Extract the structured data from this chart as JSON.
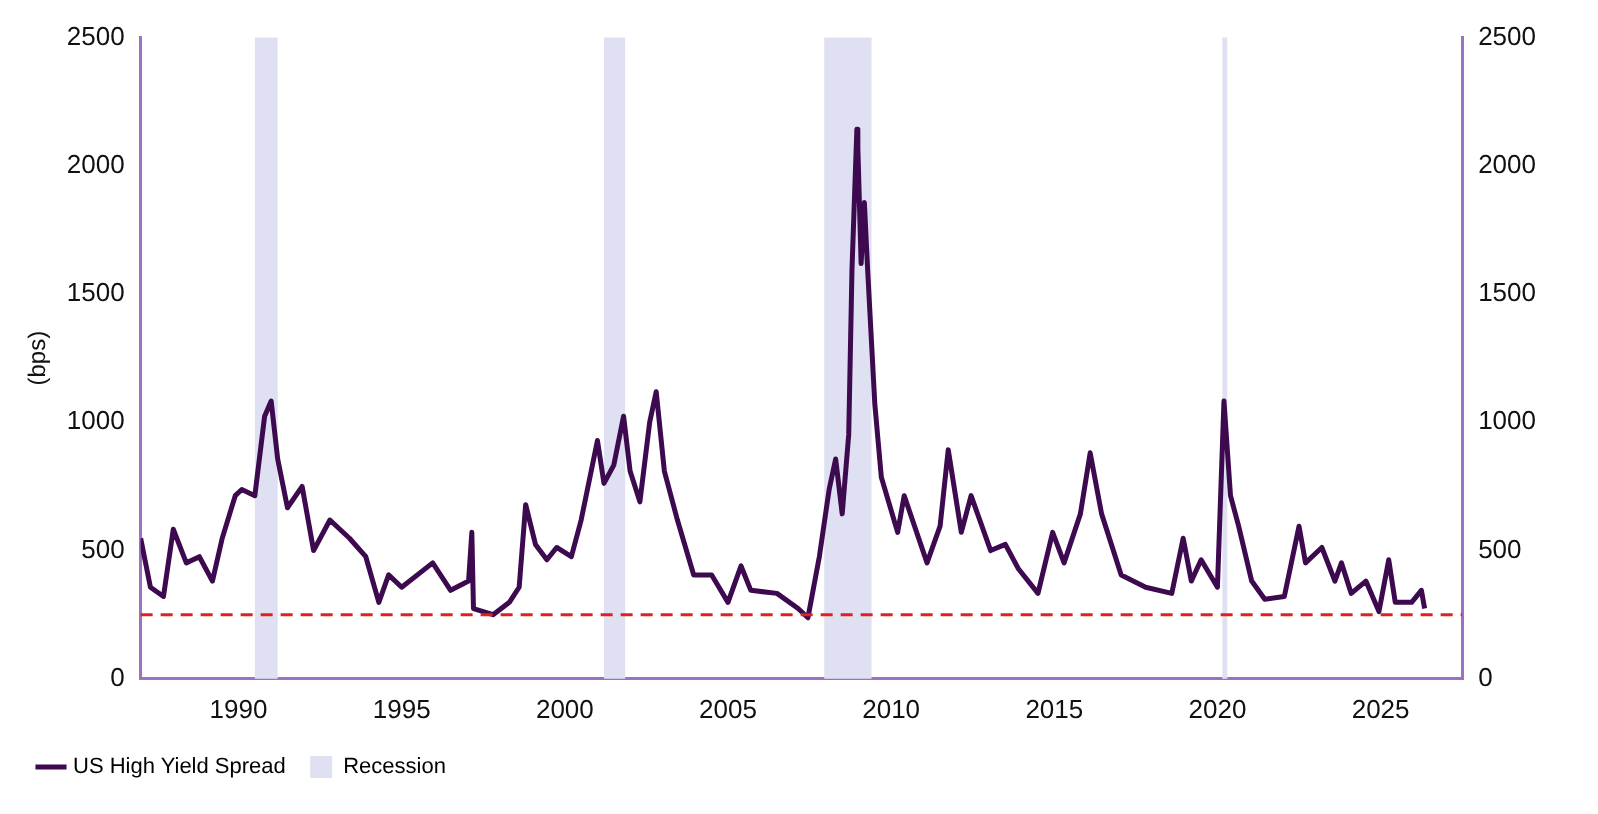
{
  "chart_data": {
    "type": "line",
    "ylabel": "(bps)",
    "legend": "bottom",
    "grid": false,
    "marker": "none",
    "line_style": "solid",
    "xlim": [
      1987,
      2027.5
    ],
    "xticks": [
      1990,
      1995,
      2000,
      2005,
      2010,
      2015,
      2020,
      2025
    ],
    "ylim": [
      0,
      2500
    ],
    "yticks": [
      0,
      500,
      1000,
      1500,
      2000,
      2500
    ],
    "y2lim": [
      0,
      2500
    ],
    "y2ticks": [
      0,
      500,
      1000,
      1500,
      2000,
      2500
    ],
    "series": [
      {
        "name": "US High Yield Spread",
        "color": "#3d0a4f",
        "x": [
          1987.0,
          1987.3,
          1987.7,
          1988.0,
          1988.4,
          1988.8,
          1989.2,
          1989.5,
          1989.9,
          1990.1,
          1990.5,
          1990.8,
          1991.0,
          1991.2,
          1991.5,
          1991.95,
          1992.3,
          1992.8,
          1993.4,
          1993.9,
          1994.3,
          1994.6,
          1995.0,
          1995.95,
          1996.5,
          1997.05,
          1997.15,
          1997.2,
          1997.8,
          1998.3,
          1998.6,
          1998.8,
          1999.1,
          1999.45,
          1999.75,
          2000.2,
          2000.5,
          2001.0,
          2001.2,
          2001.5,
          2001.8,
          2002.0,
          2002.3,
          2002.6,
          2002.8,
          2003.05,
          2003.45,
          2003.95,
          2004.5,
          2005.0,
          2005.4,
          2005.7,
          2006.5,
          2007.15,
          2007.45,
          2007.8,
          2008.1,
          2008.3,
          2008.5,
          2008.7,
          2008.8,
          2008.95,
          2008.98,
          2009.08,
          2009.18,
          2009.28,
          2009.5,
          2009.7,
          2010.2,
          2010.4,
          2011.1,
          2011.5,
          2011.75,
          2012.15,
          2012.45,
          2013.05,
          2013.5,
          2013.9,
          2014.5,
          2014.95,
          2015.3,
          2015.8,
          2016.1,
          2016.45,
          2017.05,
          2017.8,
          2018.6,
          2018.95,
          2019.2,
          2019.5,
          2020.0,
          2020.2,
          2020.4,
          2020.65,
          2021.05,
          2021.45,
          2022.05,
          2022.5,
          2022.7,
          2023.2,
          2023.6,
          2023.8,
          2024.1,
          2024.55,
          2024.95,
          2025.25,
          2025.45,
          2025.95,
          2026.25,
          2026.35
        ],
        "values": [
          548,
          357,
          321,
          583,
          452,
          476,
          381,
          548,
          714,
          738,
          714,
          1024,
          1083,
          857,
          667,
          750,
          500,
          619,
          548,
          476,
          298,
          405,
          357,
          452,
          345,
          381,
          571,
          274,
          250,
          298,
          357,
          679,
          524,
          464,
          512,
          476,
          619,
          929,
          762,
          833,
          1024,
          810,
          690,
          1000,
          1119,
          810,
          619,
          405,
          405,
          298,
          440,
          345,
          333,
          274,
          238,
          476,
          738,
          857,
          643,
          952,
          1595,
          2143,
          2071,
          1619,
          1857,
          1595,
          1071,
          786,
          571,
          714,
          452,
          595,
          893,
          571,
          714,
          500,
          524,
          429,
          333,
          571,
          452,
          643,
          881,
          643,
          405,
          357,
          333,
          548,
          381,
          464,
          357,
          1083,
          714,
          595,
          381,
          310,
          321,
          595,
          452,
          512,
          381,
          452,
          333,
          381,
          262,
          464,
          298,
          298,
          345,
          274
        ]
      }
    ],
    "bands": [
      {
        "axis": "x",
        "from": 1990.5,
        "to": 1991.2,
        "label": "Recession",
        "color": "#dfe1f2"
      },
      {
        "axis": "x",
        "from": 2001.2,
        "to": 2001.85,
        "color": "#dfe1f2"
      },
      {
        "axis": "x",
        "from": 2007.95,
        "to": 2009.4,
        "color": "#dfe1f2"
      },
      {
        "axis": "x",
        "from": 2020.15,
        "to": 2020.3,
        "color": "#dfe1f2"
      }
    ],
    "ref_lines": [
      {
        "axis": "y",
        "value": 250,
        "color": "#e02020",
        "line_style": "dashed"
      }
    ]
  }
}
